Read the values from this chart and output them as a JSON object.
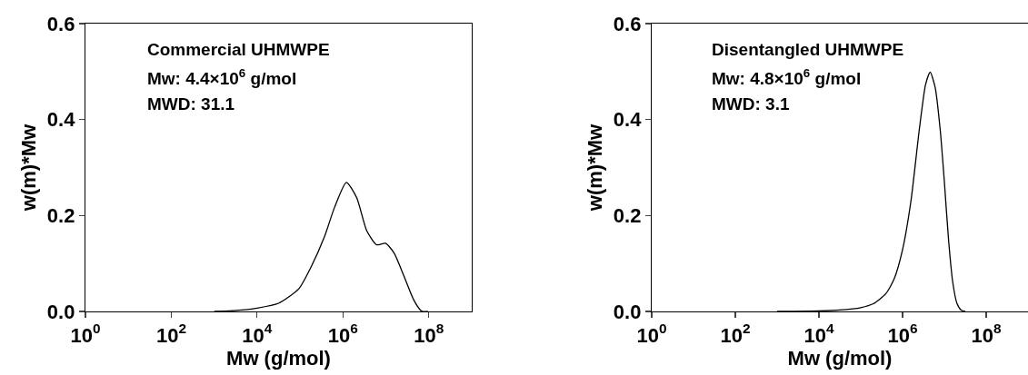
{
  "chart_data": [
    {
      "type": "line",
      "xlabel": "Mw (g/mol)",
      "ylabel": "w(m)*Mw",
      "log": "x",
      "grid": false,
      "marker": "none",
      "line_style": "solid",
      "annotations": [
        "Commercial UHMWPE",
        "Mw: 4.4×10$^{6}$ g/mol",
        "MWD: 31.1"
      ],
      "xlim": [
        1,
        1000000000
      ],
      "ylim": [
        0,
        0.6
      ],
      "xticks": [
        {
          "value": 1,
          "label": "10$^{0}$"
        },
        {
          "value": 100,
          "label": "10$^{2}$"
        },
        {
          "value": 10000,
          "label": "10$^{4}$"
        },
        {
          "value": 1000000,
          "label": "10$^{6}$"
        },
        {
          "value": 100000000,
          "label": "10$^{8}$"
        }
      ],
      "yticks": [
        {
          "value": 0,
          "label": "0.0"
        },
        {
          "value": 0.2,
          "label": "0.2"
        },
        {
          "value": 0.4,
          "label": "0.4"
        },
        {
          "value": 0.6,
          "label": "0.6"
        }
      ],
      "x": [
        1000,
        3162,
        10000,
        31623,
        93325,
        186209,
        371535,
        630957,
        1202264,
        2089296,
        3548134,
        6025596,
        9772372,
        15488166,
        26302680,
        44668359,
        67608298,
        95499259
      ],
      "series": [
        {
          "color": "#000000",
          "values": [
            0,
            0.002,
            0.007,
            0.017,
            0.047,
            0.095,
            0.156,
            0.216,
            0.269,
            0.237,
            0.169,
            0.139,
            0.142,
            0.122,
            0.074,
            0.024,
            0.001,
            0
          ]
        }
      ]
    },
    {
      "type": "line",
      "xlabel": "Mw (g/mol)",
      "ylabel": "w(m)*Mw",
      "log": "x",
      "grid": false,
      "marker": "none",
      "line_style": "solid",
      "annotations": [
        "Disentangled UHMWPE",
        "Mw: 4.8×10$^{6}$ g/mol",
        "MWD: 3.1"
      ],
      "xlim": [
        1,
        1000000000
      ],
      "ylim": [
        0,
        0.6
      ],
      "xticks": [
        {
          "value": 1,
          "label": "10$^{0}$"
        },
        {
          "value": 100,
          "label": "10$^{2}$"
        },
        {
          "value": 10000,
          "label": "10$^{4}$"
        },
        {
          "value": 1000000,
          "label": "10$^{6}$"
        },
        {
          "value": 100000000,
          "label": "10$^{8}$"
        }
      ],
      "yticks": [
        {
          "value": 0,
          "label": "0.0"
        },
        {
          "value": 0.2,
          "label": "0.2"
        },
        {
          "value": 0.4,
          "label": "0.4"
        },
        {
          "value": 0.6,
          "label": "0.6"
        }
      ],
      "x": [
        1000,
        10000,
        31623,
        100000,
        199526,
        398107,
        630957,
        1000000,
        1584893,
        2511886,
        3548134,
        4570882,
        6025596,
        7943282,
        10000000,
        12589254,
        15848932,
        19952623,
        25118864,
        31622777
      ],
      "series": [
        {
          "color": "#000000",
          "values": [
            0,
            0.001,
            0.003,
            0.008,
            0.016,
            0.037,
            0.068,
            0.129,
            0.23,
            0.379,
            0.473,
            0.499,
            0.467,
            0.379,
            0.27,
            0.149,
            0.061,
            0.017,
            0.003,
            0
          ]
        }
      ]
    }
  ]
}
